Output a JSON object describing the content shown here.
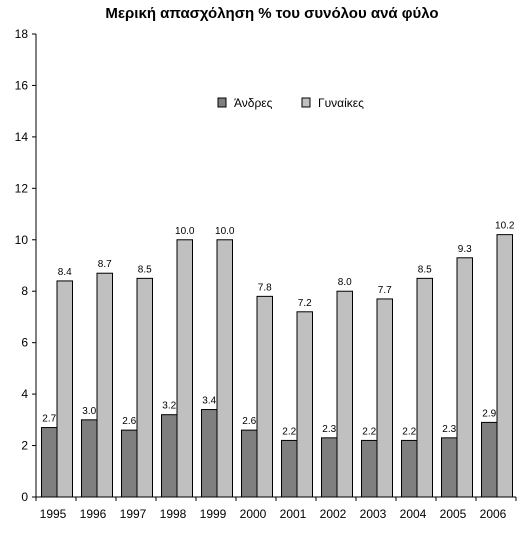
{
  "chart_data": {
    "type": "bar",
    "title": "Μερική απασχόληση % του συνόλου ανά φύλο",
    "xlabel": "",
    "ylabel": "",
    "categories": [
      "1995",
      "1996",
      "1997",
      "1998",
      "1999",
      "2000",
      "2001",
      "2002",
      "2003",
      "2004",
      "2005",
      "2006"
    ],
    "series": [
      {
        "name": "Άνδρες",
        "color": "#7f7f7f",
        "values": [
          2.7,
          3.0,
          2.6,
          3.2,
          3.4,
          2.6,
          2.2,
          2.3,
          2.2,
          2.2,
          2.3,
          2.9
        ],
        "labels": [
          "2.7",
          "3.0",
          "2.6",
          "3.2",
          "3.4",
          "2.6",
          "2.2",
          "2.3",
          "2.2",
          "2.2",
          "2.3",
          "2.9"
        ]
      },
      {
        "name": "Γυναίκες",
        "color": "#c0c0c0",
        "values": [
          8.4,
          8.7,
          8.5,
          10.0,
          10.0,
          7.8,
          7.2,
          8.0,
          7.7,
          8.5,
          9.3,
          10.2
        ],
        "labels": [
          "8.4",
          "8.7",
          "8.5",
          "10.0",
          "10.0",
          "7.8",
          "7.2",
          "8.0",
          "7.7",
          "8.5",
          "9.3",
          "10.2"
        ]
      }
    ],
    "ylim": [
      0,
      18
    ],
    "yticks": [
      0,
      2,
      4,
      6,
      8,
      10,
      12,
      14,
      16,
      18
    ],
    "grid": false,
    "legend_position": "top-center"
  }
}
